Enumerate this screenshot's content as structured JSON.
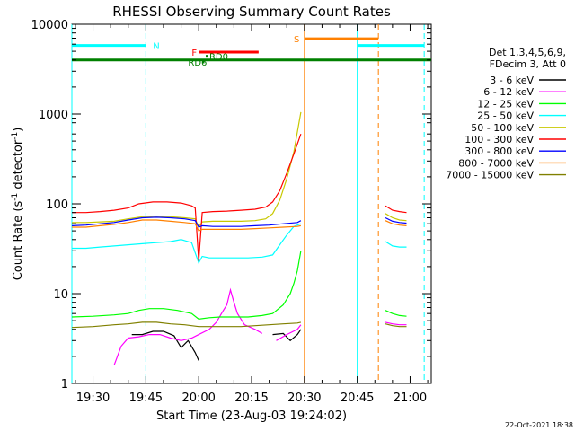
{
  "chart_data": {
    "type": "line",
    "title": "RHESSI Observing Summary Count Rates",
    "xlabel": "Start Time (23-Aug-03 19:24:02)",
    "ylabel_main": "Count Rate (s",
    "ylabel_sup1": "-1",
    "ylabel_mid": " detector",
    "ylabel_sup2": "-1",
    "ylabel_end": ")",
    "yscale": "log",
    "ylim": [
      1,
      10000
    ],
    "xlim_min": [
      1164,
      1266
    ],
    "x_unit": "minutes since 00:00 on 23-Aug-03",
    "x_ticks": [
      {
        "t": 1170,
        "label": "19:30"
      },
      {
        "t": 1185,
        "label": "19:45"
      },
      {
        "t": 1200,
        "label": "20:00"
      },
      {
        "t": 1215,
        "label": "20:15"
      },
      {
        "t": 1230,
        "label": "20:30"
      },
      {
        "t": 1245,
        "label": "20:45"
      },
      {
        "t": 1260,
        "label": "21:00"
      }
    ],
    "y_ticks": [
      {
        "v": 1,
        "label": "1"
      },
      {
        "v": 10,
        "label": "10"
      },
      {
        "v": 100,
        "label": "100"
      },
      {
        "v": 1000,
        "label": "1000"
      },
      {
        "v": 10000,
        "label": "10000"
      }
    ],
    "legend_header": [
      "Det 1,3,4,5,6,9,",
      "FDecim 3, Att 0"
    ],
    "legend_placement": "right",
    "series": [
      {
        "name": "3 - 6 keV",
        "color": "#000000",
        "segments": [
          [
            [
              1181,
              3.5
            ],
            [
              1184,
              3.5
            ],
            [
              1187,
              3.8
            ],
            [
              1190,
              3.8
            ],
            [
              1193,
              3.4
            ],
            [
              1195,
              2.5
            ],
            [
              1197,
              3.0
            ],
            [
              1199,
              2.2
            ],
            [
              1200,
              1.8
            ]
          ],
          [
            [
              1221,
              3.5
            ],
            [
              1224,
              3.6
            ],
            [
              1226,
              3.0
            ],
            [
              1228,
              3.5
            ],
            [
              1229,
              4.0
            ]
          ]
        ]
      },
      {
        "name": "6 - 12 keV",
        "color": "#ff00ff",
        "segments": [
          [
            [
              1176,
              1.6
            ],
            [
              1178,
              2.6
            ],
            [
              1180,
              3.2
            ],
            [
              1183,
              3.3
            ],
            [
              1186,
              3.5
            ],
            [
              1189,
              3.5
            ],
            [
              1192,
              3.2
            ],
            [
              1195,
              3.0
            ],
            [
              1198,
              3.2
            ],
            [
              1200,
              3.5
            ],
            [
              1203,
              4.0
            ],
            [
              1205,
              4.8
            ],
            [
              1207,
              6.5
            ],
            [
              1208,
              7.5
            ],
            [
              1209,
              11
            ],
            [
              1210,
              8
            ],
            [
              1211,
              6
            ],
            [
              1213,
              4.5
            ],
            [
              1216,
              4.0
            ],
            [
              1218,
              3.6
            ]
          ],
          [
            [
              1222,
              3.0
            ],
            [
              1225,
              3.5
            ],
            [
              1228,
              4.0
            ],
            [
              1229,
              4.5
            ]
          ],
          [
            [
              1253,
              4.8
            ],
            [
              1255,
              4.6
            ],
            [
              1257,
              4.5
            ],
            [
              1259,
              4.5
            ]
          ]
        ]
      },
      {
        "name": "12 - 25 keV",
        "color": "#00ff00",
        "segments": [
          [
            [
              1164,
              5.5
            ],
            [
              1170,
              5.6
            ],
            [
              1176,
              5.8
            ],
            [
              1180,
              6.0
            ],
            [
              1183,
              6.5
            ],
            [
              1186,
              6.8
            ],
            [
              1190,
              6.8
            ],
            [
              1194,
              6.5
            ],
            [
              1198,
              6.0
            ],
            [
              1200,
              5.2
            ],
            [
              1203,
              5.4
            ],
            [
              1206,
              5.5
            ],
            [
              1210,
              5.5
            ],
            [
              1214,
              5.5
            ],
            [
              1218,
              5.7
            ],
            [
              1221,
              6.0
            ],
            [
              1224,
              7.5
            ],
            [
              1226,
              10
            ],
            [
              1227,
              13
            ],
            [
              1228,
              18
            ],
            [
              1229,
              30
            ]
          ],
          [
            [
              1253,
              6.5
            ],
            [
              1255,
              6.0
            ],
            [
              1257,
              5.7
            ],
            [
              1259,
              5.6
            ]
          ]
        ]
      },
      {
        "name": "25 - 50 keV",
        "color": "#00ffff",
        "segments": [
          [
            [
              1164,
              32
            ],
            [
              1168,
              32
            ],
            [
              1172,
              33
            ],
            [
              1176,
              34
            ],
            [
              1180,
              35
            ],
            [
              1184,
              36
            ],
            [
              1188,
              37
            ],
            [
              1192,
              38
            ],
            [
              1195,
              40
            ],
            [
              1198,
              37
            ],
            [
              1200,
              22
            ],
            [
              1201,
              26
            ],
            [
              1203,
              25
            ],
            [
              1206,
              25
            ],
            [
              1210,
              25
            ],
            [
              1214,
              25
            ],
            [
              1218,
              25.5
            ],
            [
              1221,
              27
            ],
            [
              1223,
              35
            ],
            [
              1225,
              45
            ],
            [
              1227,
              56
            ],
            [
              1229,
              60
            ]
          ],
          [
            [
              1253,
              38
            ],
            [
              1255,
              34
            ],
            [
              1257,
              33
            ],
            [
              1259,
              33
            ]
          ]
        ]
      },
      {
        "name": "50 - 100 keV",
        "color": "#c8c800",
        "segments": [
          [
            [
              1164,
              62
            ],
            [
              1168,
              62
            ],
            [
              1172,
              63
            ],
            [
              1176,
              64
            ],
            [
              1180,
              68
            ],
            [
              1184,
              72
            ],
            [
              1188,
              73
            ],
            [
              1192,
              72
            ],
            [
              1196,
              70
            ],
            [
              1199,
              68
            ],
            [
              1200,
              55
            ],
            [
              1201,
              63
            ],
            [
              1204,
              64
            ],
            [
              1208,
              64
            ],
            [
              1212,
              64
            ],
            [
              1216,
              65
            ],
            [
              1219,
              68
            ],
            [
              1221,
              78
            ],
            [
              1223,
              110
            ],
            [
              1225,
              190
            ],
            [
              1227,
              380
            ],
            [
              1229,
              1050
            ]
          ],
          [
            [
              1253,
              78
            ],
            [
              1255,
              70
            ],
            [
              1257,
              66
            ],
            [
              1259,
              65
            ]
          ]
        ]
      },
      {
        "name": "100 - 300 keV",
        "color": "#ff0000",
        "segments": [
          [
            [
              1164,
              80
            ],
            [
              1168,
              80
            ],
            [
              1172,
              82
            ],
            [
              1176,
              85
            ],
            [
              1180,
              90
            ],
            [
              1183,
              100
            ],
            [
              1187,
              105
            ],
            [
              1191,
              105
            ],
            [
              1195,
              102
            ],
            [
              1198,
              95
            ],
            [
              1199,
              90
            ],
            [
              1200,
              23
            ],
            [
              1201,
              80
            ],
            [
              1204,
              82
            ],
            [
              1208,
              83
            ],
            [
              1212,
              85
            ],
            [
              1216,
              87
            ],
            [
              1219,
              92
            ],
            [
              1221,
              105
            ],
            [
              1223,
              140
            ],
            [
              1225,
              220
            ],
            [
              1227,
              360
            ],
            [
              1229,
              600
            ]
          ],
          [
            [
              1253,
              95
            ],
            [
              1255,
              85
            ],
            [
              1257,
              82
            ],
            [
              1259,
              80
            ]
          ]
        ]
      },
      {
        "name": "300 - 800 keV",
        "color": "#0000ff",
        "segments": [
          [
            [
              1164,
              57
            ],
            [
              1168,
              58
            ],
            [
              1172,
              60
            ],
            [
              1176,
              62
            ],
            [
              1180,
              66
            ],
            [
              1184,
              70
            ],
            [
              1188,
              71
            ],
            [
              1192,
              70
            ],
            [
              1196,
              68
            ],
            [
              1199,
              65
            ],
            [
              1200,
              55
            ],
            [
              1201,
              57
            ],
            [
              1204,
              56
            ],
            [
              1208,
              56
            ],
            [
              1212,
              56
            ],
            [
              1216,
              57
            ],
            [
              1220,
              58
            ],
            [
              1224,
              60
            ],
            [
              1228,
              62
            ],
            [
              1229,
              65
            ]
          ],
          [
            [
              1253,
              70
            ],
            [
              1255,
              64
            ],
            [
              1257,
              62
            ],
            [
              1259,
              61
            ]
          ]
        ]
      },
      {
        "name": "800 - 7000 keV",
        "color": "#ff8000",
        "segments": [
          [
            [
              1164,
              55
            ],
            [
              1168,
              55
            ],
            [
              1172,
              57
            ],
            [
              1176,
              59
            ],
            [
              1180,
              62
            ],
            [
              1184,
              66
            ],
            [
              1188,
              66
            ],
            [
              1192,
              64
            ],
            [
              1196,
              62
            ],
            [
              1199,
              60
            ],
            [
              1200,
              50
            ],
            [
              1201,
              52
            ],
            [
              1204,
              52
            ],
            [
              1208,
              52
            ],
            [
              1212,
              52
            ],
            [
              1216,
              53
            ],
            [
              1220,
              54
            ],
            [
              1224,
              55
            ],
            [
              1228,
              56
            ],
            [
              1229,
              57
            ]
          ],
          [
            [
              1253,
              65
            ],
            [
              1255,
              60
            ],
            [
              1257,
              58
            ],
            [
              1259,
              57
            ]
          ]
        ]
      },
      {
        "name": "7000 - 15000 keV",
        "color": "#808000",
        "segments": [
          [
            [
              1164,
              4.2
            ],
            [
              1170,
              4.3
            ],
            [
              1176,
              4.5
            ],
            [
              1180,
              4.6
            ],
            [
              1184,
              4.8
            ],
            [
              1188,
              4.8
            ],
            [
              1192,
              4.6
            ],
            [
              1196,
              4.5
            ],
            [
              1200,
              4.3
            ],
            [
              1204,
              4.3
            ],
            [
              1208,
              4.3
            ],
            [
              1212,
              4.3
            ],
            [
              1216,
              4.4
            ],
            [
              1220,
              4.5
            ],
            [
              1224,
              4.6
            ],
            [
              1228,
              4.7
            ],
            [
              1229,
              4.8
            ]
          ],
          [
            [
              1253,
              4.6
            ],
            [
              1255,
              4.4
            ],
            [
              1257,
              4.3
            ],
            [
              1259,
              4.3
            ]
          ]
        ]
      }
    ],
    "flag_bars": [
      {
        "label": "N",
        "color": "#00ffff",
        "y": 5800,
        "ranges": [
          [
            1164,
            1185
          ],
          [
            1245,
            1264
          ]
        ],
        "label_t": 1187
      },
      {
        "label": "S",
        "color": "#ff8000",
        "y": 6900,
        "ranges": [
          [
            1230,
            1251
          ]
        ],
        "label_t": 1227
      },
      {
        "label": "F",
        "color": "#ff0000",
        "y": 4900,
        "ranges": [
          [
            1200,
            1217
          ]
        ],
        "label_t": 1198
      },
      {
        "label": "RD0",
        "color": "#008000",
        "y": 4400,
        "ranges": [
          [
            1202,
            1202.6
          ]
        ],
        "label_t": 1203
      },
      {
        "label": "RD6",
        "color": "#008000",
        "y": 3800,
        "ranges": [
          [
            1201,
            1201.6
          ]
        ],
        "label_t": 1197
      }
    ],
    "attenuator_line": {
      "color": "#008000",
      "y": 4000,
      "range": [
        1164,
        1266
      ]
    },
    "vertical_markers": [
      {
        "t": 1164,
        "color": "#00ffff",
        "style": "solid"
      },
      {
        "t": 1185,
        "color": "#00ffff",
        "style": "dashed"
      },
      {
        "t": 1230,
        "color": "#ff8000",
        "style": "solid"
      },
      {
        "t": 1245,
        "color": "#00ffff",
        "style": "solid"
      },
      {
        "t": 1251,
        "color": "#ff8000",
        "style": "dashed"
      },
      {
        "t": 1264,
        "color": "#00ffff",
        "style": "dashed"
      }
    ],
    "grid": false,
    "footer_date": "22-Oct-2021 18:38"
  }
}
